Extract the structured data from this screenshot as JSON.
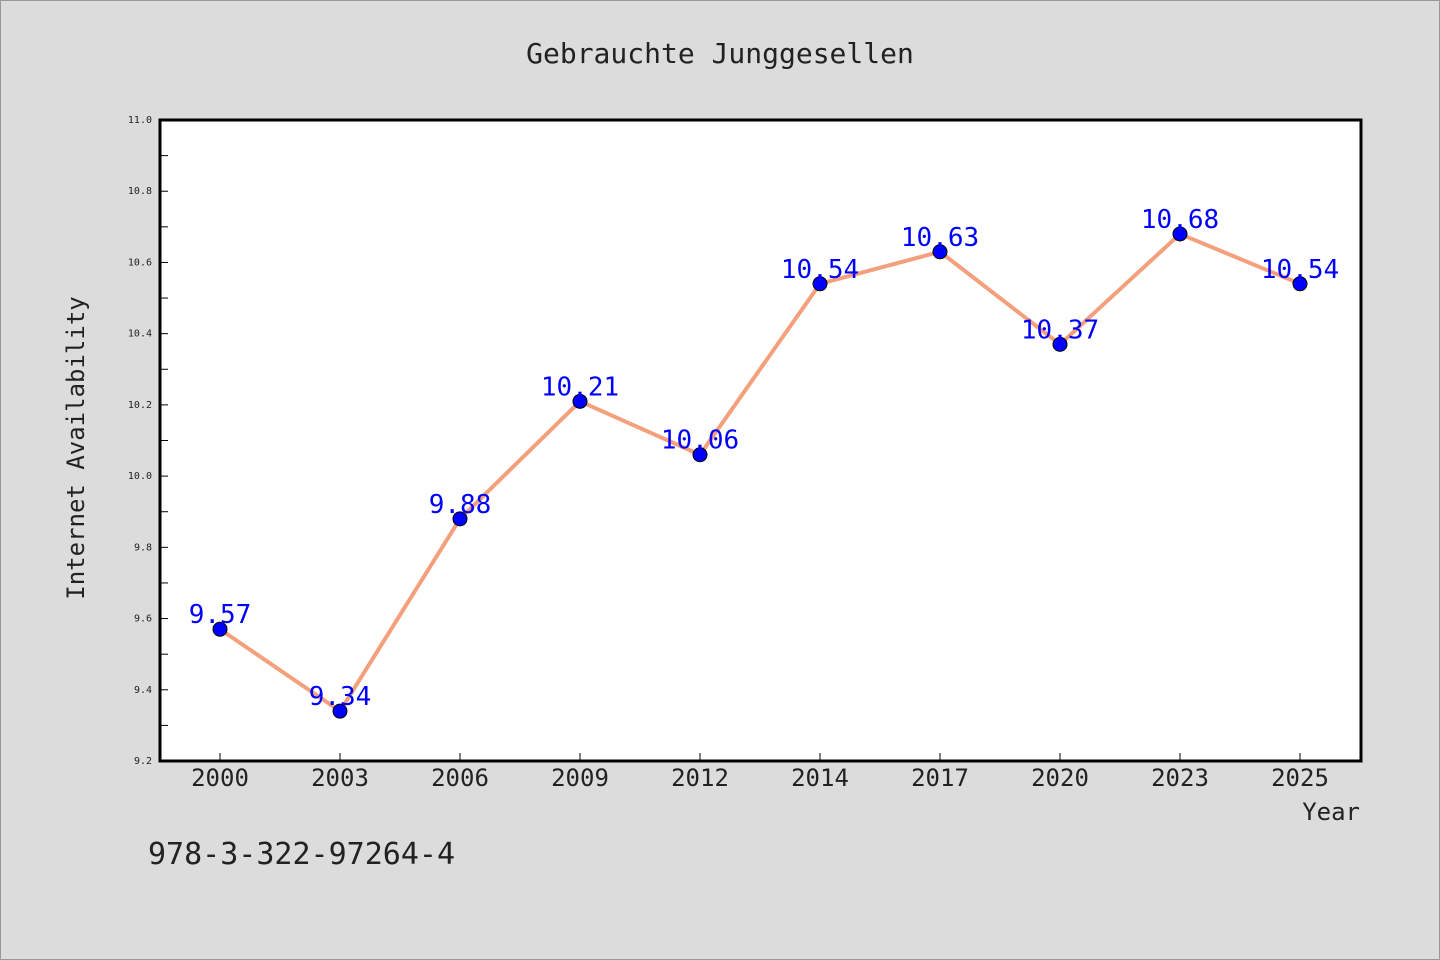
{
  "chart_data": {
    "type": "line",
    "title": "Gebrauchte Junggesellen",
    "xlabel": "Year",
    "ylabel": "Internet Availability",
    "categories": [
      "2000",
      "2003",
      "2006",
      "2009",
      "2012",
      "2014",
      "2017",
      "2020",
      "2023",
      "2025"
    ],
    "series": [
      {
        "values": [
          9.57,
          9.34,
          9.88,
          10.21,
          10.06,
          10.54,
          10.63,
          10.37,
          10.68,
          10.54
        ]
      }
    ],
    "data_labels": [
      "9.57",
      "9.34",
      "9.88",
      "10.21",
      "10.06",
      "10.54",
      "10.63",
      "10.37",
      "10.68",
      "10.54"
    ],
    "ylim": [
      9.2,
      11.0
    ],
    "yticks": [
      "9.2",
      "9.4",
      "9.6",
      "9.8",
      "10.0",
      "10.2",
      "10.4",
      "10.6",
      "10.8",
      "11.0"
    ],
    "grid": false,
    "line_color": "#f4a07c",
    "marker_color": "#0000ff",
    "label_color": "#0000ff",
    "background_color": "#dcdcdc",
    "plot_background_color": "#ffffff"
  },
  "footer": {
    "code": "978-3-322-97264-4"
  }
}
